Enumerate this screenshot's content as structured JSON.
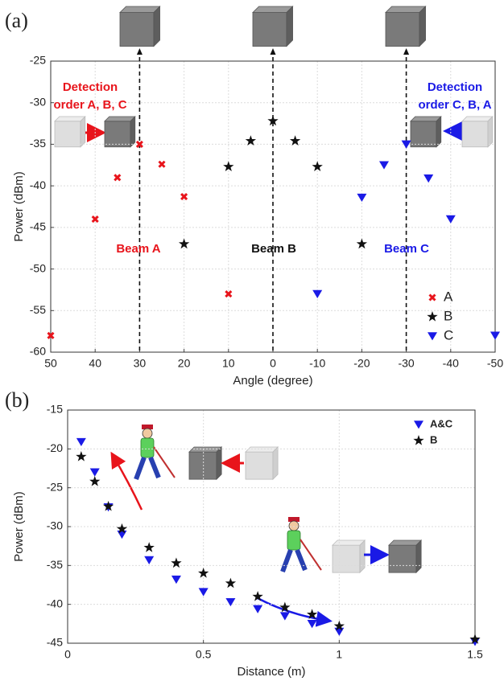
{
  "chart_data": [
    {
      "type": "scatter",
      "panel_label": "(a)",
      "xlabel": "Angle (degree)",
      "ylabel": "Power (dBm)",
      "xlim": [
        50,
        -50
      ],
      "ylim": [
        -60,
        -25
      ],
      "xticks": [
        50,
        40,
        30,
        20,
        10,
        0,
        -10,
        -20,
        -30,
        -40,
        -50
      ],
      "yticks": [
        -60,
        -55,
        -50,
        -45,
        -40,
        -35,
        -30,
        -25
      ],
      "grid": true,
      "legend": "lower right",
      "vlines": [
        30,
        0,
        -30
      ],
      "series": [
        {
          "name": "A",
          "color": "#e8141b",
          "marker": "x",
          "x": [
            50,
            40,
            35,
            30,
            25,
            20,
            10
          ],
          "values": [
            -58,
            -44,
            -39,
            -35,
            -37.4,
            -41.3,
            -53
          ]
        },
        {
          "name": "B",
          "color": "#111111",
          "marker": "star",
          "x": [
            20,
            10,
            5,
            0,
            -5,
            -10,
            -20
          ],
          "values": [
            -47,
            -37.7,
            -34.6,
            -32.2,
            -34.6,
            -37.7,
            -47
          ]
        },
        {
          "name": "C",
          "color": "#1a1ae6",
          "marker": "triangle",
          "x": [
            -10,
            -20,
            -25,
            -30,
            -35,
            -40,
            -50
          ],
          "values": [
            -53,
            -41.4,
            -37.5,
            -35,
            -39.1,
            -44,
            -58
          ]
        }
      ],
      "annotations": [
        {
          "lines": [
            "Detection",
            "order A, B, C"
          ],
          "color": "#e8141b"
        },
        {
          "lines": [
            "Detection",
            "order C, B, A"
          ],
          "color": "#1a1ae6"
        },
        {
          "lines": [
            "Beam A"
          ],
          "color": "#e8141b"
        },
        {
          "lines": [
            "Beam B"
          ],
          "color": "#111111"
        },
        {
          "lines": [
            "Beam C"
          ],
          "color": "#1a1ae6"
        }
      ]
    },
    {
      "type": "scatter",
      "panel_label": "(b)",
      "xlabel": "Distance (m)",
      "ylabel": "Power (dBm)",
      "xlim": [
        0,
        1.5
      ],
      "ylim": [
        -45,
        -15
      ],
      "xticks": [
        0,
        0.5,
        1,
        1.5
      ],
      "yticks": [
        -45,
        -40,
        -35,
        -30,
        -25,
        -20,
        -15
      ],
      "grid": true,
      "legend": "upper right",
      "series": [
        {
          "name": "A&C",
          "color": "#1a1ae6",
          "marker": "triangle",
          "x": [
            0.05,
            0.1,
            0.15,
            0.2,
            0.3,
            0.4,
            0.5,
            0.6,
            0.7,
            0.8,
            0.9,
            1,
            1.5
          ],
          "values": [
            -19.1,
            -23,
            -27.5,
            -31,
            -34.3,
            -36.8,
            -38.4,
            -39.7,
            -40.6,
            -41.5,
            -42.5,
            -43.5,
            -44.8
          ]
        },
        {
          "name": "B",
          "color": "#111111",
          "marker": "star",
          "x": [
            0.05,
            0.1,
            0.15,
            0.2,
            0.3,
            0.4,
            0.5,
            0.6,
            0.7,
            0.8,
            0.9,
            1,
            1.5
          ],
          "values": [
            -21,
            -24.2,
            -27.4,
            -30.3,
            -32.7,
            -34.7,
            -36,
            -37.3,
            -39,
            -40.4,
            -41.3,
            -42.8,
            -44.5
          ]
        }
      ]
    }
  ]
}
